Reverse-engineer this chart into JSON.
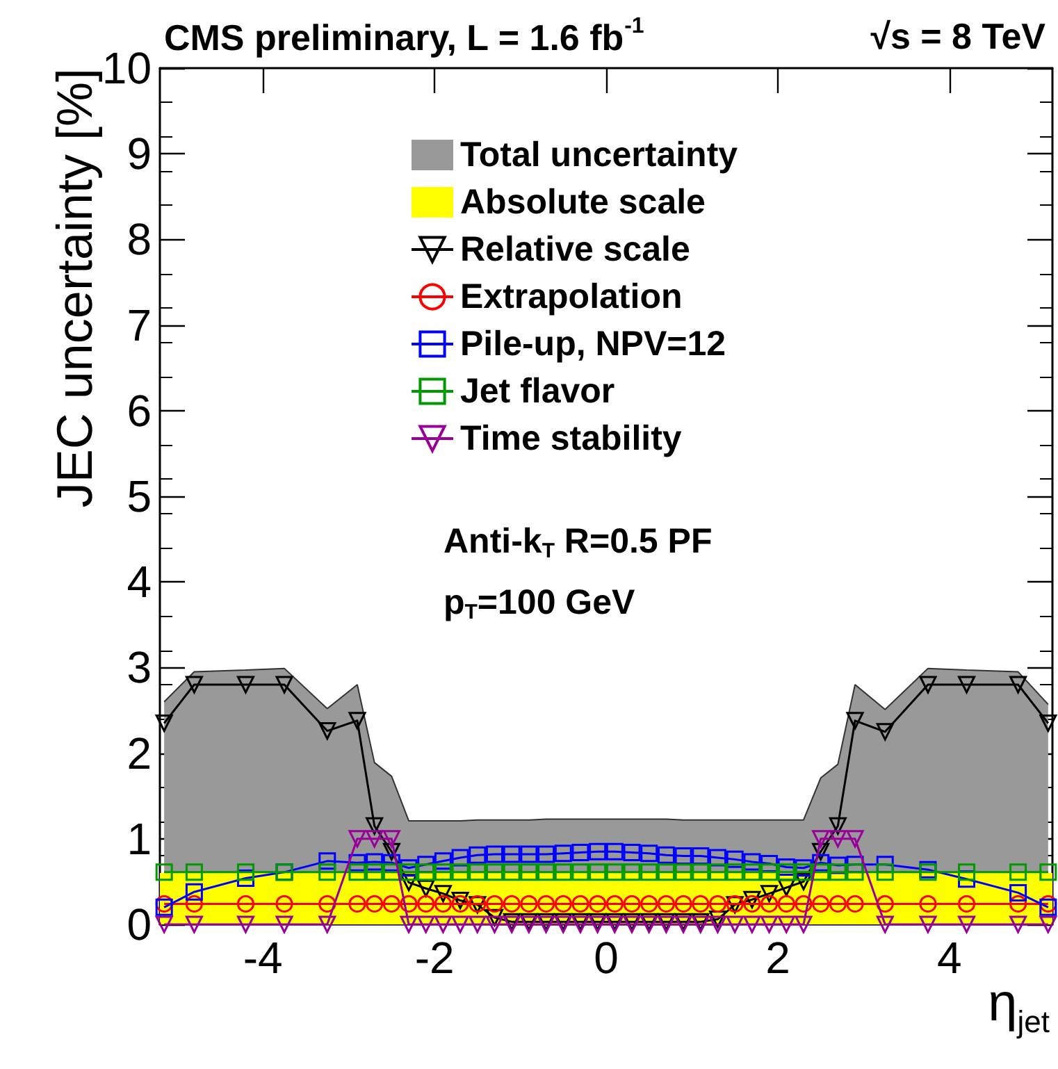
{
  "chart_data": {
    "type": "line",
    "title": "CMS preliminary, L = 1.6 fb$^{-1}$",
    "subtitle": "√s = 8 TeV",
    "xlabel": "η$_{jet}$",
    "ylabel": "JEC uncertainty [%]",
    "annotations": [
      "Anti-k$_{T}$ R=0.5 PF",
      "p$_{T}$=100 GeV"
    ],
    "x": [
      -5.15,
      -4.8,
      -4.2,
      -3.75,
      -3.25,
      -2.9,
      -2.7,
      -2.5,
      -2.3,
      -2.1,
      -1.9,
      -1.7,
      -1.5,
      -1.3,
      -1.1,
      -0.9,
      -0.7,
      -0.5,
      -0.3,
      -0.1,
      0.1,
      0.3,
      0.5,
      0.7,
      0.9,
      1.1,
      1.3,
      1.5,
      1.7,
      1.9,
      2.1,
      2.3,
      2.5,
      2.7,
      2.9,
      3.25,
      3.75,
      4.2,
      4.8,
      5.15
    ],
    "series": [
      {
        "name": "Total uncertainty",
        "type": "area",
        "color": "#999999",
        "values": [
          2.6,
          2.95,
          2.97,
          2.99,
          2.52,
          2.8,
          1.89,
          1.73,
          1.21,
          1.21,
          1.21,
          1.21,
          1.22,
          1.22,
          1.22,
          1.22,
          1.23,
          1.23,
          1.23,
          1.23,
          1.23,
          1.23,
          1.23,
          1.23,
          1.22,
          1.22,
          1.22,
          1.22,
          1.22,
          1.22,
          1.22,
          1.22,
          1.71,
          1.87,
          2.8,
          2.51,
          2.99,
          2.97,
          2.95,
          2.57
        ]
      },
      {
        "name": "Relative scale",
        "marker": "triangle",
        "color": "#000000",
        "values": [
          2.35,
          2.8,
          2.8,
          2.8,
          2.26,
          2.38,
          1.15,
          0.85,
          0.49,
          0.42,
          0.36,
          0.28,
          0.23,
          0.08,
          0.03,
          0.03,
          0.03,
          0.03,
          0.03,
          0.03,
          0.03,
          0.03,
          0.03,
          0.03,
          0.03,
          0.03,
          0.06,
          0.23,
          0.29,
          0.36,
          0.43,
          0.5,
          0.85,
          1.15,
          2.38,
          2.25,
          2.8,
          2.8,
          2.8,
          2.35
        ]
      },
      {
        "name": "Extrapolation",
        "marker": "circle",
        "color": "#ff0000",
        "values": [
          0.24,
          0.24,
          0.24,
          0.24,
          0.24,
          0.24,
          0.24,
          0.24,
          0.24,
          0.24,
          0.24,
          0.24,
          0.24,
          0.24,
          0.24,
          0.24,
          0.24,
          0.24,
          0.24,
          0.24,
          0.24,
          0.24,
          0.24,
          0.24,
          0.24,
          0.24,
          0.24,
          0.24,
          0.24,
          0.24,
          0.24,
          0.24,
          0.24,
          0.24,
          0.24,
          0.24,
          0.24,
          0.24,
          0.24,
          0.24
        ]
      },
      {
        "name": "Pile-up, NPV=12",
        "marker": "square",
        "color": "#0000ff",
        "values": [
          0.2,
          0.38,
          0.54,
          0.61,
          0.74,
          0.72,
          0.73,
          0.72,
          0.66,
          0.7,
          0.74,
          0.78,
          0.81,
          0.82,
          0.82,
          0.82,
          0.82,
          0.83,
          0.84,
          0.85,
          0.85,
          0.84,
          0.83,
          0.81,
          0.8,
          0.8,
          0.78,
          0.76,
          0.73,
          0.71,
          0.67,
          0.66,
          0.72,
          0.69,
          0.7,
          0.7,
          0.64,
          0.53,
          0.37,
          0.2
        ]
      },
      {
        "name": "Jet flavor",
        "marker": "square",
        "color": "#009900",
        "values": [
          0.61,
          0.61,
          0.61,
          0.61,
          0.61,
          0.61,
          0.61,
          0.61,
          0.61,
          0.61,
          0.61,
          0.61,
          0.61,
          0.61,
          0.61,
          0.61,
          0.61,
          0.61,
          0.61,
          0.61,
          0.61,
          0.61,
          0.61,
          0.61,
          0.61,
          0.61,
          0.61,
          0.61,
          0.61,
          0.61,
          0.61,
          0.61,
          0.61,
          0.61,
          0.61,
          0.61,
          0.61,
          0.61,
          0.61,
          0.61
        ]
      },
      {
        "name": "Time stability",
        "marker": "triangle",
        "color": "#990099",
        "values": [
          0,
          0,
          0,
          0,
          0,
          1.0,
          1.0,
          1.0,
          0,
          0,
          0,
          0,
          0,
          0,
          0,
          0,
          0,
          0,
          0,
          0,
          0,
          0,
          0,
          0,
          0,
          0,
          0,
          0,
          0,
          0,
          0,
          0,
          1.0,
          1.0,
          1.0,
          0,
          0,
          0,
          0,
          0
        ]
      }
    ],
    "xlim": [
      -5.2,
      5.2
    ],
    "xticks": [
      -4,
      -2,
      0,
      2,
      4
    ],
    "ylim": [
      0,
      10
    ],
    "yticks": [
      0,
      1,
      2,
      3,
      4,
      5,
      6,
      7,
      8,
      9,
      10
    ],
    "bands": [
      {
        "axis": "y",
        "from": 0,
        "to": 0.6,
        "label": "Absolute scale",
        "color": "#ffff00"
      }
    ],
    "grid": false,
    "legend": "top"
  }
}
